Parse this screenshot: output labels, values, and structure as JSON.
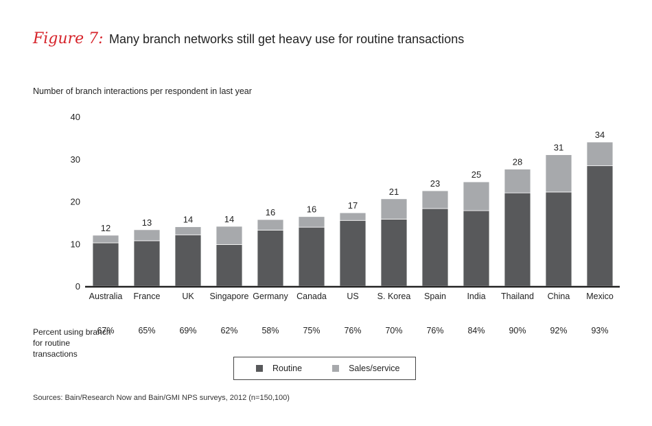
{
  "title": {
    "figure_label": "Figure 7:",
    "text": "Many branch networks still get heavy use for routine transactions"
  },
  "chart_data": {
    "type": "bar",
    "stacked": true,
    "ylabel": "Number of branch interactions per respondent in last year",
    "ylim": [
      0,
      40
    ],
    "yticks": [
      0,
      10,
      20,
      30,
      40
    ],
    "categories": [
      "Australia",
      "France",
      "UK",
      "Singapore",
      "Germany",
      "Canada",
      "US",
      "S. Korea",
      "Spain",
      "India",
      "Thailand",
      "China",
      "Mexico"
    ],
    "series": [
      {
        "name": "Routine",
        "color": "#58595b",
        "values": [
          10.2,
          10.7,
          12.1,
          9.8,
          13.2,
          13.9,
          15.5,
          15.8,
          18.3,
          17.8,
          22.0,
          22.2,
          28.4
        ]
      },
      {
        "name": "Sales/service",
        "color": "#a7a9ac",
        "values": [
          1.8,
          2.6,
          1.9,
          4.3,
          2.5,
          2.5,
          1.8,
          4.8,
          4.2,
          6.8,
          5.6,
          8.8,
          5.6
        ]
      }
    ],
    "totals": [
      "12",
      "13",
      "14",
      "14",
      "16",
      "16",
      "17",
      "21",
      "23",
      "25",
      "28",
      "31",
      "34"
    ],
    "percent_label": "Percent using branch for routine transactions",
    "percent_values": [
      "67%",
      "65%",
      "69%",
      "62%",
      "58%",
      "75%",
      "76%",
      "70%",
      "76%",
      "84%",
      "90%",
      "92%",
      "93%"
    ],
    "legend_position": "bottom"
  },
  "source": "Sources: Bain/Research Now and Bain/GMI NPS surveys, 2012 (n=150,100)"
}
